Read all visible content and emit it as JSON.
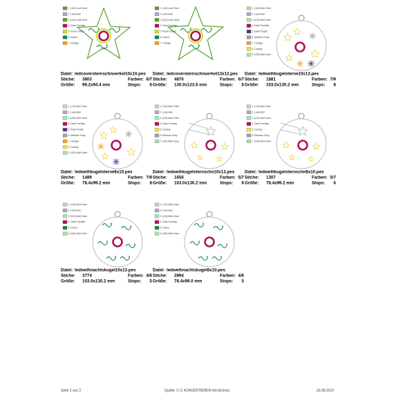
{
  "labels": {
    "file": "Datei:",
    "stitches": "Stiche:",
    "colors": "Farben:",
    "size": "Größe:",
    "stops": "Stops:"
  },
  "designs": [
    {
      "file": "ledcoversternschnoerkel10x10.pes",
      "stitches": 3803,
      "colors": "6/7",
      "size": "99.2x94.4 mm",
      "stops": 6,
      "threads": [
        {
          "num": 1,
          "name": "(1/2) Leaf Gree",
          "color": "#5aa02c"
        },
        {
          "num": 2,
          "name": "Lavender",
          "color": "#b0a0d8"
        },
        {
          "num": 3,
          "name": "(2/2) Leaf Gree",
          "color": "#5aa02c"
        },
        {
          "num": 4,
          "name": "Dark Fuchsia",
          "color": "#b0105a"
        },
        {
          "num": 5,
          "name": "Fresh Green",
          "color": "#c8e030"
        },
        {
          "num": 6,
          "name": "Green",
          "color": "#1a8040"
        },
        {
          "num": 7,
          "name": "Orange",
          "color": "#f0a030"
        }
      ]
    },
    {
      "file": "ledcoversternschnoerkel13x12.pes",
      "stitches": 4870,
      "colors": "6/7",
      "size": "130.0x123.6 mm",
      "stops": 6,
      "threads": [
        {
          "num": 1,
          "name": "(1/2) Leaf Gree",
          "color": "#5aa02c"
        },
        {
          "num": 2,
          "name": "Lavender",
          "color": "#b0a0d8"
        },
        {
          "num": 3,
          "name": "(2/2) Leaf Gree",
          "color": "#5aa02c"
        },
        {
          "num": 4,
          "name": "Dark Fuchsia",
          "color": "#b0105a"
        },
        {
          "num": 5,
          "name": "Fresh Green",
          "color": "#c8e030"
        },
        {
          "num": 6,
          "name": "Green",
          "color": "#1a8040"
        },
        {
          "num": 7,
          "name": "Orange",
          "color": "#f0a030"
        }
      ]
    },
    {
      "file": "ledweihkugelsterne10x13.pes",
      "stitches": 1881,
      "colors": "7/9",
      "size": "103.0x130.2 mm",
      "stops": 8,
      "threads": [
        {
          "num": 1,
          "name": "(1/3) Mint Gree",
          "color": "#a8e0b8"
        },
        {
          "num": 2,
          "name": "Lavender",
          "color": "#b0a0d8"
        },
        {
          "num": 3,
          "name": "(2/3) Mint Gree",
          "color": "#a8e0b8"
        },
        {
          "num": 4,
          "name": "Dark Fuchsia",
          "color": "#b0105a"
        },
        {
          "num": 5,
          "name": "Dark Purple",
          "color": "#503080"
        },
        {
          "num": 6,
          "name": "Medium Grey",
          "color": "#a0a0a0"
        },
        {
          "num": 7,
          "name": "Orange",
          "color": "#f0a030"
        },
        {
          "num": 8,
          "name": "Canary",
          "color": "#f0e040"
        },
        {
          "num": 9,
          "name": "(3/3) Mint Gree",
          "color": "#a8e0b8"
        }
      ]
    },
    {
      "file": "ledweihkugelsterne8x10.pes",
      "stitches": 1489,
      "colors": "7/9",
      "size": "78.4x99.2 mm",
      "stops": 8,
      "threads": [
        {
          "num": 1,
          "name": "(1/3) Mint Gree",
          "color": "#a8e0b8"
        },
        {
          "num": 2,
          "name": "Lavender",
          "color": "#b0a0d8"
        },
        {
          "num": 3,
          "name": "(2/3) Mint Gree",
          "color": "#a8e0b8"
        },
        {
          "num": 4,
          "name": "Dark Fuchsia",
          "color": "#b0105a"
        },
        {
          "num": 5,
          "name": "Dark Purple",
          "color": "#503080"
        },
        {
          "num": 6,
          "name": "Medium Grey",
          "color": "#a0a0a0"
        },
        {
          "num": 7,
          "name": "Orange",
          "color": "#f0a030"
        },
        {
          "num": 8,
          "name": "Canary",
          "color": "#f0e040"
        },
        {
          "num": 9,
          "name": "(3/3) Mint Gree",
          "color": "#a8e0b8"
        }
      ]
    },
    {
      "file": "ledweihkugelsternschn10x13.pes",
      "stitches": 1656,
      "colors": "5/7",
      "size": "103.0x130.2 mm",
      "stops": 6,
      "threads": [
        {
          "num": 1,
          "name": "(1/3) Mint Gree",
          "color": "#a8e0b8"
        },
        {
          "num": 2,
          "name": "Lavender",
          "color": "#b0a0d8"
        },
        {
          "num": 3,
          "name": "(2/3) Mint Gree",
          "color": "#a8e0b8"
        },
        {
          "num": 4,
          "name": "Dark Fuchsia",
          "color": "#b0105a"
        },
        {
          "num": 5,
          "name": "Canary",
          "color": "#f0e040"
        },
        {
          "num": 6,
          "name": "Medium Grey",
          "color": "#a0a0a0"
        },
        {
          "num": 7,
          "name": "(3/3) Mint Gree",
          "color": "#a8e0b8"
        }
      ]
    },
    {
      "file": "ledweihkugelsternschn8x10.pes",
      "stitches": 1307,
      "colors": "5/7",
      "size": "78.4x99.2 mm",
      "stops": 6,
      "threads": [
        {
          "num": 1,
          "name": "(1/3) Mint Gree",
          "color": "#a8e0b8"
        },
        {
          "num": 2,
          "name": "Lavender",
          "color": "#b0a0d8"
        },
        {
          "num": 3,
          "name": "(2/3) Mint Gree",
          "color": "#a8e0b8"
        },
        {
          "num": 4,
          "name": "Dark Fuchsia",
          "color": "#b0105a"
        },
        {
          "num": 5,
          "name": "Canary",
          "color": "#f0e040"
        },
        {
          "num": 6,
          "name": "Medium Grey",
          "color": "#a0a0a0"
        },
        {
          "num": 7,
          "name": "(3/3) Mint Gree",
          "color": "#a8e0b8"
        }
      ]
    },
    {
      "file": "ledweihnachtskugel10x13.pes",
      "stitches": 3774,
      "colors": "4/6",
      "size": "103.0x130.2 mm",
      "stops": 5,
      "threads": [
        {
          "num": 1,
          "name": "(1/3) Mint Gree",
          "color": "#a8e0b8"
        },
        {
          "num": 2,
          "name": "Lavender",
          "color": "#b0a0d8"
        },
        {
          "num": 3,
          "name": "(2/3) Mint Gree",
          "color": "#a8e0b8"
        },
        {
          "num": 4,
          "name": "Dark Fuchsia",
          "color": "#b0105a"
        },
        {
          "num": 5,
          "name": "Green",
          "color": "#1a8040"
        },
        {
          "num": 6,
          "name": "(3/3) Mint Gree",
          "color": "#a8e0b8"
        }
      ]
    },
    {
      "file": "ledweihnachtskugel8x10.pes",
      "stitches": 2894,
      "colors": "4/6",
      "size": "78.4x99.0 mm",
      "stops": 5,
      "threads": [
        {
          "num": 1,
          "name": "(1/3) Mint Gree",
          "color": "#a8e0b8"
        },
        {
          "num": 2,
          "name": "Lavender",
          "color": "#b0a0d8"
        },
        {
          "num": 3,
          "name": "(2/3) Mint Gree",
          "color": "#a8e0b8"
        },
        {
          "num": 4,
          "name": "Dark Fuchsia",
          "color": "#b0105a"
        },
        {
          "num": 5,
          "name": "Green",
          "color": "#1a8040"
        },
        {
          "num": 6,
          "name": "(3/3) Mint Gree",
          "color": "#a8e0b8"
        }
      ]
    }
  ],
  "footer": {
    "page": "Seite 2 von 2",
    "source": "Quelle: C:\\1 KONVERTIEREN Verzeichnis",
    "date": "20.08.2019"
  }
}
